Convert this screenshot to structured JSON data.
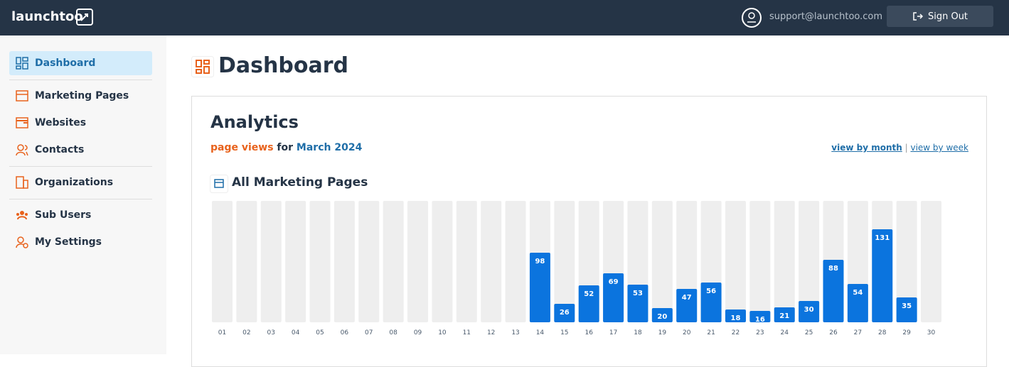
{
  "header": {
    "logo": "launchtoo",
    "email": "support@launchtoo.com",
    "sign_out": "Sign Out"
  },
  "sidebar": {
    "items": [
      "Dashboard",
      "Marketing Pages",
      "Websites",
      "Contacts",
      "Organizations",
      "Sub Users",
      "My Settings"
    ]
  },
  "main": {
    "title": "Dashboard",
    "card_title": "Analytics",
    "subtitle_metric": "page views",
    "subtitle_for": "for",
    "subtitle_period": "March 2024",
    "link_month": "view by month",
    "separator": "|",
    "link_week": "view by week"
  },
  "chart_data": {
    "type": "bar",
    "title": "All Marketing Pages",
    "categories": [
      "01",
      "02",
      "03",
      "04",
      "05",
      "06",
      "07",
      "08",
      "09",
      "10",
      "11",
      "12",
      "13",
      "14",
      "15",
      "16",
      "17",
      "18",
      "19",
      "20",
      "21",
      "22",
      "23",
      "24",
      "25",
      "26",
      "27",
      "28",
      "29",
      "30"
    ],
    "values": [
      null,
      null,
      null,
      null,
      null,
      null,
      null,
      null,
      null,
      null,
      null,
      null,
      null,
      98,
      26,
      52,
      69,
      53,
      20,
      47,
      56,
      18,
      16,
      21,
      30,
      88,
      54,
      131,
      35,
      null
    ],
    "color": "#0b74de",
    "ylim": [
      0,
      171
    ]
  }
}
